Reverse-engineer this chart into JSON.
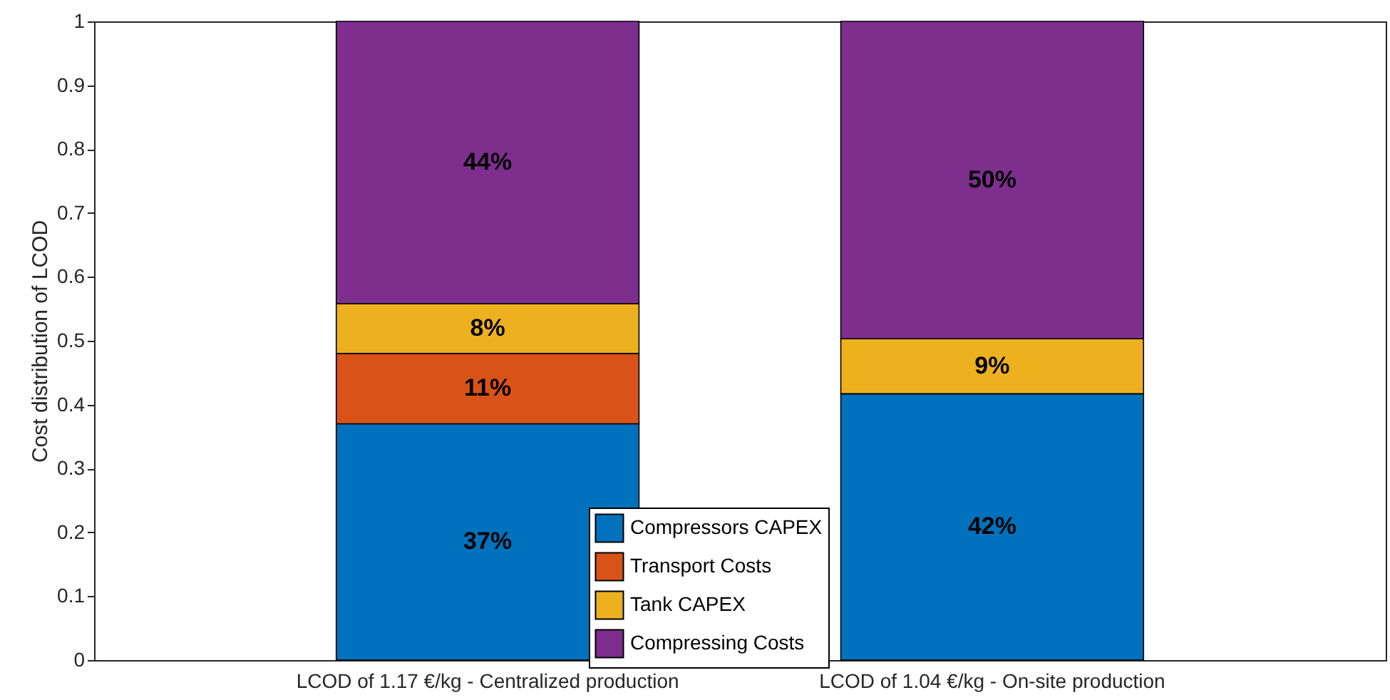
{
  "chart_data": {
    "type": "bar",
    "stacked": true,
    "ylabel": "Cost distribution of LCOD",
    "categories": [
      "LCOD of 1.17 €/kg - Centralized production",
      "LCOD of 1.04 €/kg - On-site production"
    ],
    "series": [
      {
        "name": "Compressors CAPEX",
        "color": "#0072bd",
        "values": [
          0.37,
          0.417
        ],
        "value_labels": [
          "37%",
          "42%"
        ]
      },
      {
        "name": "Transport Costs",
        "color": "#d95319",
        "values": [
          0.11,
          0
        ],
        "value_labels": [
          "11%",
          null
        ]
      },
      {
        "name": "Tank CAPEX",
        "color": "#edb120",
        "values": [
          0.078,
          0.086
        ],
        "value_labels": [
          "8%",
          "9%"
        ]
      },
      {
        "name": "Compressing Costs",
        "color": "#7e2f8e",
        "values": [
          0.442,
          0.497
        ],
        "value_labels": [
          "44%",
          "50%"
        ]
      }
    ],
    "ylim": [
      0,
      1
    ],
    "yticks": [
      0,
      0.1,
      0.2,
      0.3,
      0.4,
      0.5,
      0.6,
      0.7,
      0.8,
      0.9,
      1
    ],
    "legend": "bottom"
  }
}
